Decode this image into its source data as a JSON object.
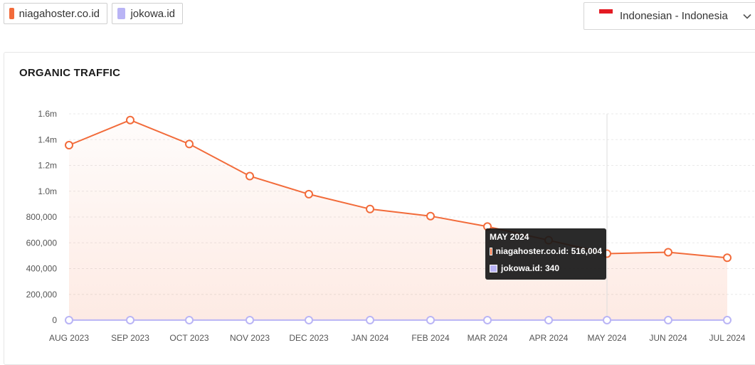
{
  "legend": {
    "items": [
      {
        "label": "niagahoster.co.id",
        "color": "#f26b3a"
      },
      {
        "label": "jokowa.id",
        "color": "#b9b4f5"
      }
    ]
  },
  "language_select": {
    "value": "Indonesian - Indonesia",
    "flag": "indonesia-flag-icon"
  },
  "card": {
    "title": "ORGANIC TRAFFIC"
  },
  "tooltip": {
    "title": "MAY 2024",
    "rows": [
      {
        "text": "niagahoster.co.id: 516,004",
        "color": "#f26b3a"
      },
      {
        "text": "jokowa.id: 340",
        "color": "#b9b4f5"
      }
    ]
  },
  "chart_data": {
    "type": "line",
    "title": "ORGANIC TRAFFIC",
    "categories": [
      "AUG 2023",
      "SEP 2023",
      "OCT 2023",
      "NOV 2023",
      "DEC 2023",
      "JAN 2024",
      "FEB 2024",
      "MAR 2024",
      "APR 2024",
      "MAY 2024",
      "JUN 2024",
      "JUL 2024"
    ],
    "y_ticks": [
      {
        "value": 0,
        "label": "0"
      },
      {
        "value": 200000,
        "label": "200,000"
      },
      {
        "value": 400000,
        "label": "400,000"
      },
      {
        "value": 600000,
        "label": "600,000"
      },
      {
        "value": 800000,
        "label": "800,000"
      },
      {
        "value": 1000000,
        "label": "1.0m"
      },
      {
        "value": 1200000,
        "label": "1.2m"
      },
      {
        "value": 1400000,
        "label": "1.4m"
      },
      {
        "value": 1600000,
        "label": "1.6m"
      }
    ],
    "ylim": [
      0,
      1600000
    ],
    "grid": true,
    "series": [
      {
        "name": "niagahoster.co.id",
        "color": "#f26b3a",
        "area": true,
        "values": [
          1357000,
          1552000,
          1366000,
          1117000,
          977000,
          862000,
          807000,
          726000,
          620000,
          516004,
          527000,
          484000
        ]
      },
      {
        "name": "jokowa.id",
        "color": "#b9b4f5",
        "area": false,
        "values": [
          300,
          320,
          310,
          330,
          340,
          350,
          330,
          320,
          330,
          340,
          350,
          360
        ]
      }
    ],
    "highlight_index": 9
  }
}
